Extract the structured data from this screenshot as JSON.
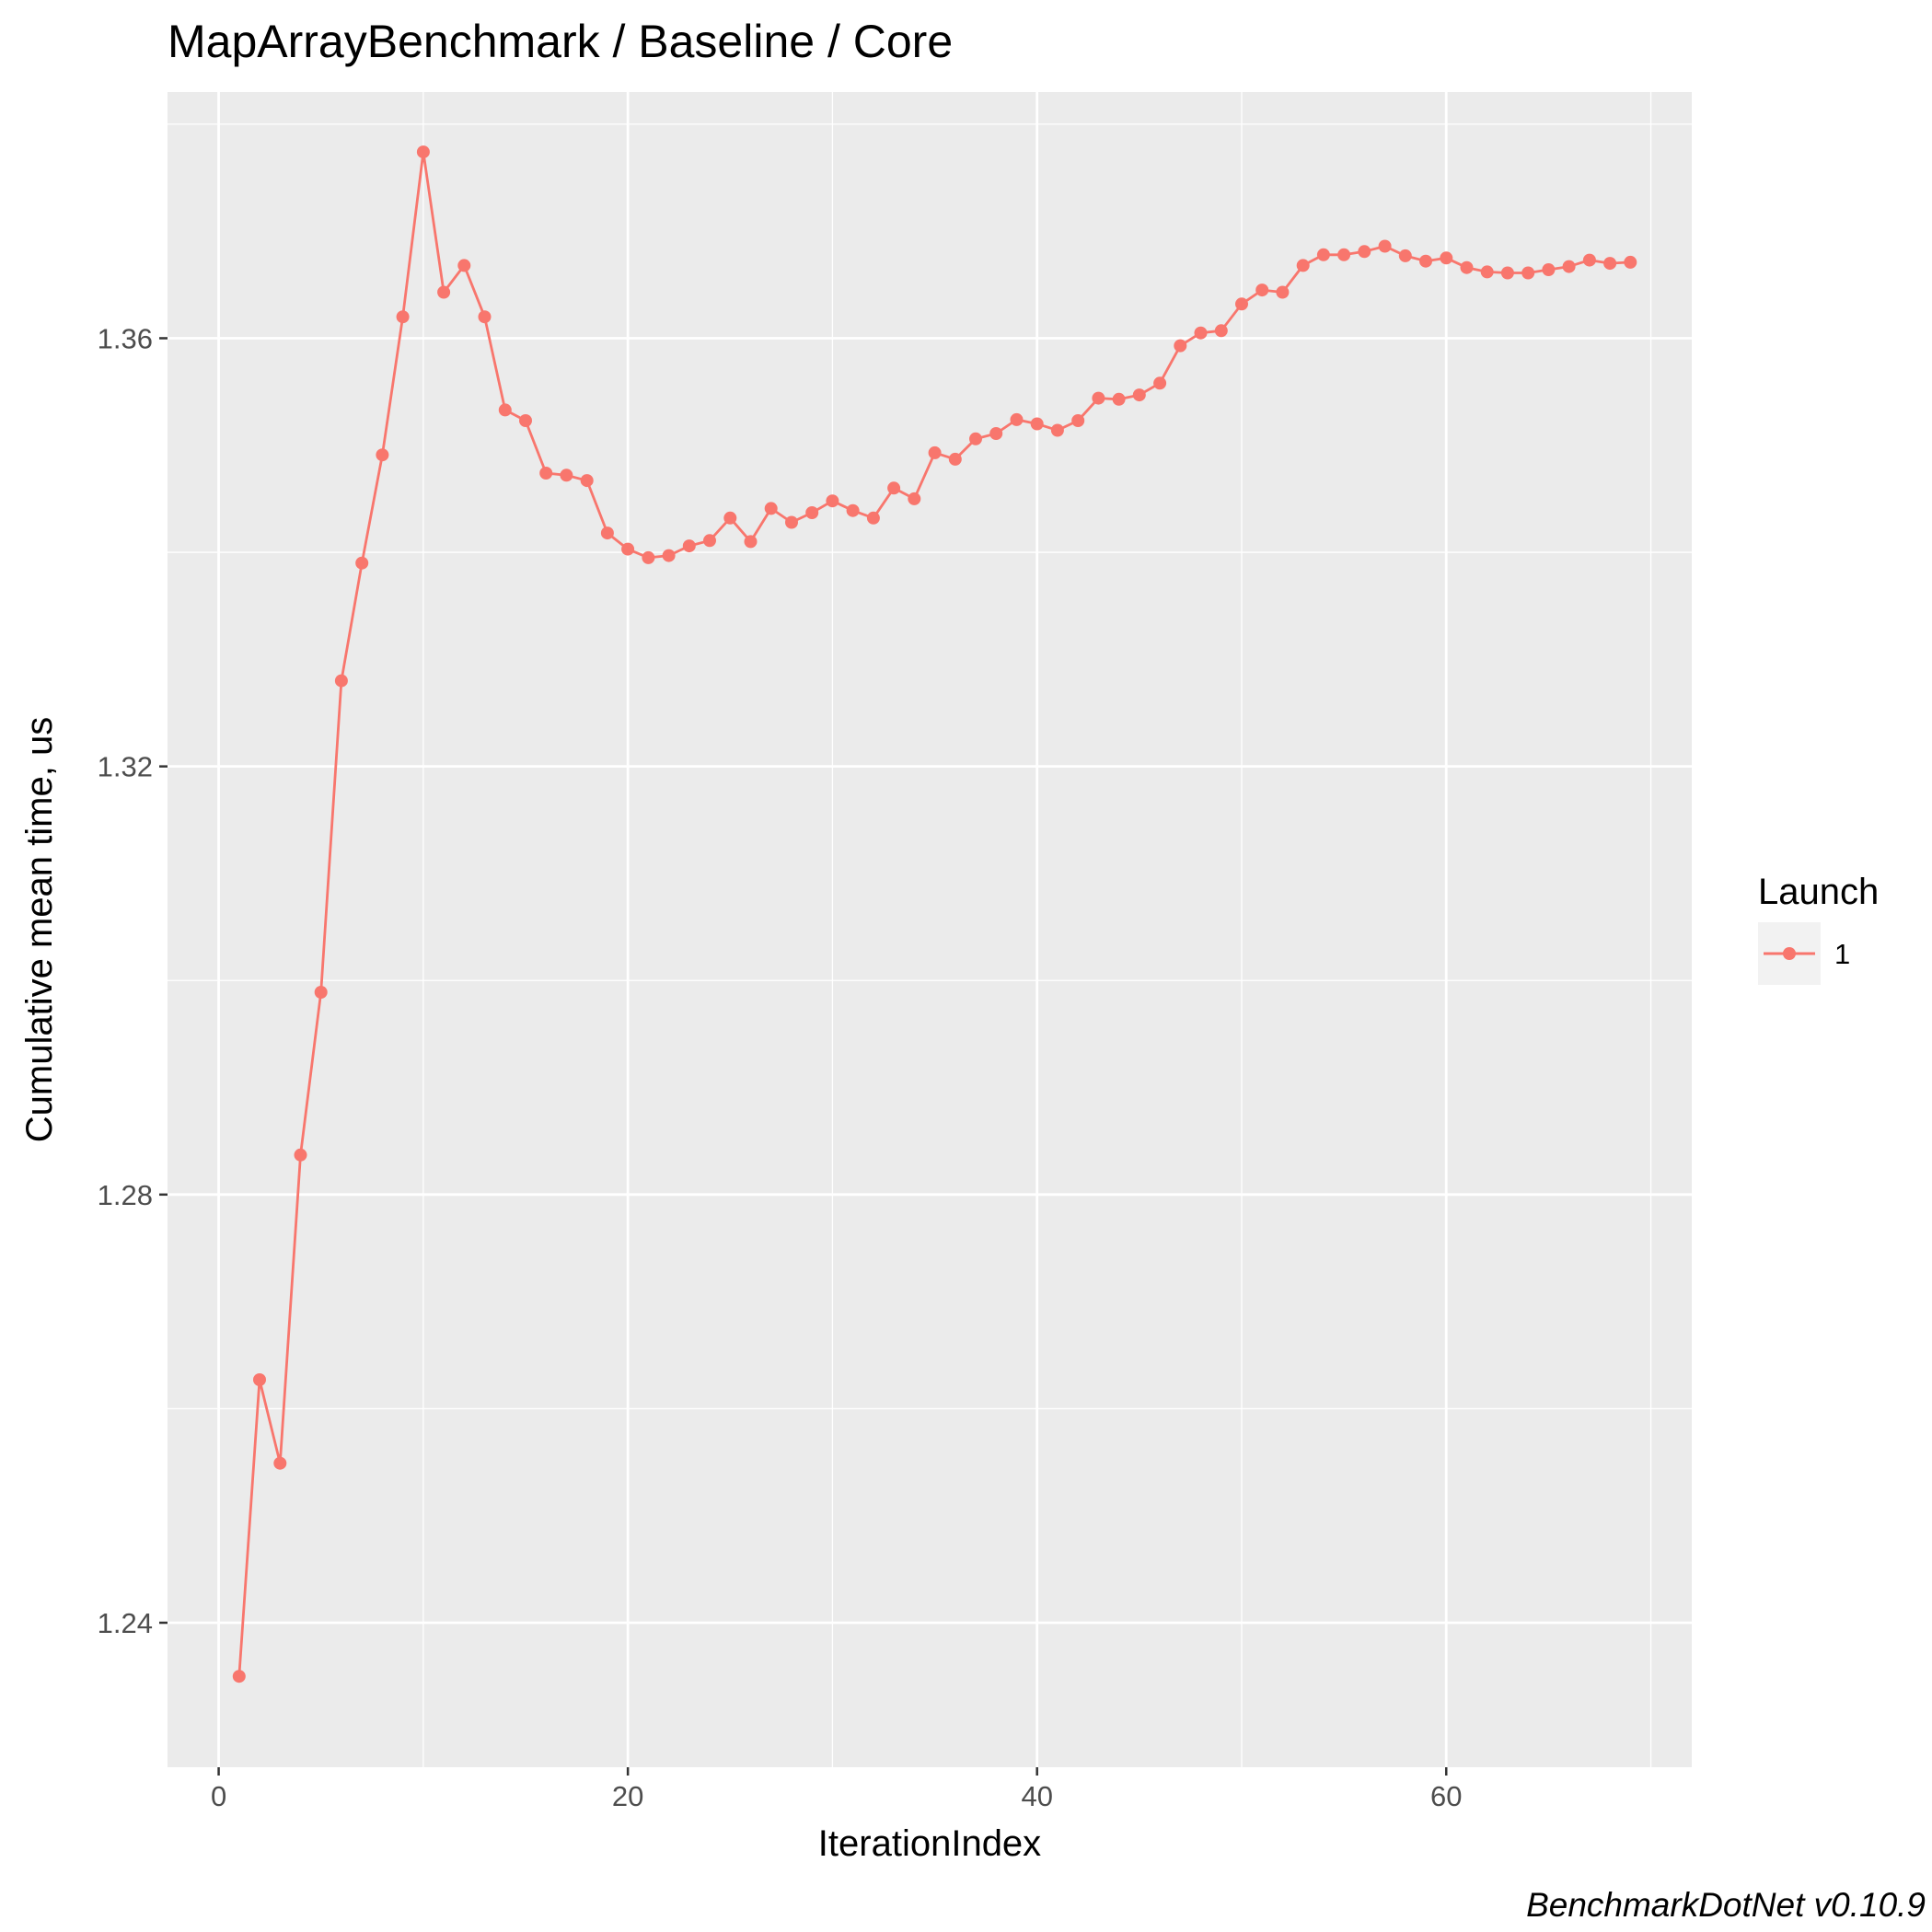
{
  "chart_data": {
    "type": "line",
    "title": "MapArrayBenchmark / Baseline / Core",
    "xlabel": "IterationIndex",
    "ylabel": "Cumulative mean time, us",
    "caption": "BenchmarkDotNet v0.10.9",
    "xlim": [
      -2.5,
      72
    ],
    "ylim": [
      1.2265,
      1.383
    ],
    "x_ticks": [
      0,
      20,
      40,
      60
    ],
    "y_ticks": [
      1.24,
      1.28,
      1.32,
      1.36
    ],
    "grid": true,
    "legend": {
      "title": "Launch",
      "position": "right"
    },
    "series": [
      {
        "name": "1",
        "color": "#F8766D",
        "x": [
          1,
          2,
          3,
          4,
          5,
          6,
          7,
          8,
          9,
          10,
          11,
          12,
          13,
          14,
          15,
          16,
          17,
          18,
          19,
          20,
          21,
          22,
          23,
          24,
          25,
          26,
          27,
          28,
          29,
          30,
          31,
          32,
          33,
          34,
          35,
          36,
          37,
          38,
          39,
          40,
          41,
          42,
          43,
          44,
          45,
          46,
          47,
          48,
          49,
          50,
          51,
          52,
          53,
          54,
          55,
          56,
          57,
          58,
          59,
          60,
          61,
          62,
          63,
          64,
          65,
          66,
          67,
          68,
          69
        ],
        "values": [
          1.235,
          1.2627,
          1.2549,
          1.2837,
          1.2989,
          1.328,
          1.339,
          1.3491,
          1.362,
          1.3774,
          1.3643,
          1.3668,
          1.362,
          1.3533,
          1.3523,
          1.3474,
          1.3472,
          1.3467,
          1.3418,
          1.3403,
          1.3395,
          1.3397,
          1.3406,
          1.3411,
          1.3432,
          1.341,
          1.3441,
          1.3428,
          1.3437,
          1.3448,
          1.3439,
          1.3432,
          1.346,
          1.345,
          1.3493,
          1.3487,
          1.3506,
          1.3511,
          1.3524,
          1.352,
          1.3514,
          1.3523,
          1.3544,
          1.3543,
          1.3547,
          1.3558,
          1.3593,
          1.3605,
          1.3607,
          1.3632,
          1.3645,
          1.3643,
          1.3668,
          1.3678,
          1.3678,
          1.3681,
          1.3686,
          1.3677,
          1.3672,
          1.3675,
          1.3666,
          1.3662,
          1.3661,
          1.3661,
          1.3664,
          1.3667,
          1.3673,
          1.367,
          1.3671
        ]
      }
    ]
  }
}
